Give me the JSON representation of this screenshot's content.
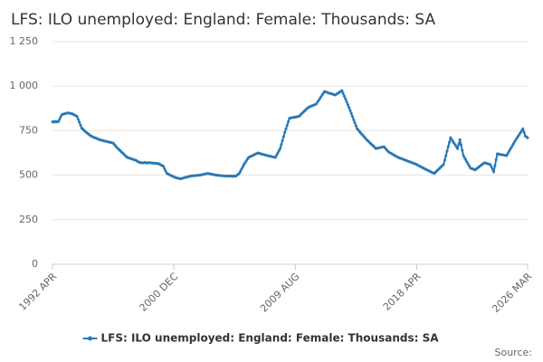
{
  "chart_data": {
    "type": "line",
    "title": "LFS: ILO unemployed: England: Female: Thousands: SA",
    "source": "Source:",
    "categories": [
      "1992 APR",
      null,
      null,
      null,
      null,
      null,
      null,
      null,
      null,
      null,
      null,
      null,
      null,
      null,
      null,
      null,
      null,
      null,
      null,
      null,
      null,
      null,
      null,
      null,
      null,
      null,
      null,
      null,
      null,
      null,
      null,
      null,
      null,
      null,
      null,
      null,
      null,
      null,
      null,
      null,
      null,
      null,
      null,
      null,
      null,
      null,
      null,
      null,
      null,
      null,
      null,
      null,
      null,
      null,
      null,
      null,
      null,
      null,
      null,
      null,
      null,
      null,
      null,
      null,
      null,
      null,
      null,
      null,
      null,
      null,
      null,
      null,
      null,
      null,
      null,
      null,
      null,
      null,
      null,
      null,
      null,
      null,
      null,
      null,
      null,
      null,
      null,
      null,
      null,
      null,
      null,
      null,
      null,
      null,
      null,
      null,
      null,
      null,
      null,
      null,
      null,
      null,
      null,
      null,
      "2000 DEC",
      null,
      null,
      null,
      null,
      null,
      null,
      null,
      null,
      null,
      null,
      null,
      null,
      null,
      null,
      null,
      null,
      null,
      null,
      null,
      null,
      null,
      null,
      null,
      null,
      null,
      null,
      null,
      null,
      null,
      null,
      null,
      null,
      null,
      null,
      null,
      null,
      null,
      null,
      null,
      null,
      null,
      null,
      null,
      null,
      null,
      null,
      null,
      null,
      null,
      null,
      null,
      null,
      null,
      null,
      null,
      null,
      null,
      null,
      null,
      null,
      null,
      null,
      null,
      null,
      null,
      null,
      null,
      null,
      null,
      null,
      null,
      null,
      null,
      null,
      null,
      null,
      null,
      null,
      null,
      null,
      null,
      null,
      null,
      null,
      null,
      null,
      null,
      null,
      null,
      null,
      null,
      null,
      null,
      null,
      null,
      null,
      null,
      null,
      null,
      null,
      null,
      null,
      null,
      "2009 AUG",
      null,
      null,
      null,
      null,
      null,
      null,
      null,
      null,
      null,
      null,
      null,
      null,
      null,
      null,
      null,
      null,
      null,
      null,
      null,
      null,
      null,
      null,
      null,
      null,
      null,
      null,
      null,
      null,
      null,
      null,
      null,
      null,
      null,
      null,
      null,
      null,
      null,
      null,
      null,
      null,
      null,
      null,
      null,
      null,
      null,
      null,
      null,
      null,
      null,
      null,
      null,
      null,
      null,
      null,
      null,
      null,
      null,
      null,
      null,
      null,
      null,
      null,
      null,
      null,
      null,
      null,
      null,
      null,
      null,
      null,
      null,
      null,
      null,
      null,
      null,
      null,
      null,
      null,
      null,
      null,
      null,
      null,
      null,
      null,
      null,
      null,
      null,
      null,
      null,
      null,
      null,
      null,
      null,
      null,
      null,
      null,
      null,
      null,
      null,
      null,
      null,
      null,
      null,
      "2018 APR",
      null,
      null,
      null,
      null,
      null,
      null,
      null,
      null,
      null,
      null,
      null,
      null,
      null,
      null,
      null,
      null,
      null,
      null,
      null,
      null,
      null,
      null,
      null,
      null,
      null,
      null,
      null,
      null,
      null,
      null,
      null,
      null,
      null,
      null,
      null,
      null,
      null,
      null,
      null,
      null,
      null,
      null,
      null,
      null,
      null,
      null,
      null,
      null,
      null,
      null,
      null,
      null,
      null,
      null,
      null,
      null,
      null,
      null,
      null,
      null,
      null,
      null,
      null,
      null,
      null,
      null,
      null,
      null,
      null,
      null,
      null,
      null,
      null,
      null,
      null,
      null,
      null,
      null,
      null,
      null,
      null,
      null,
      null,
      null,
      null,
      null,
      null,
      null,
      null,
      null,
      null,
      null,
      null,
      null,
      "2026 MAR"
    ],
    "series": [
      {
        "name": "LFS: ILO unemployed: England: Female: Thousands: SA",
        "color": "#2a78b4",
        "values": [
          800,
          798,
          802,
          799,
          801,
          800,
          813,
          827,
          840,
          842,
          844,
          846,
          848,
          850,
          849,
          847,
          846,
          845,
          841,
          837,
          834,
          830,
          814,
          798,
          781,
          765,
          759,
          752,
          746,
          740,
          735,
          730,
          725,
          720,
          717,
          714,
          711,
          709,
          706,
          703,
          700,
          698,
          697,
          695,
          693,
          692,
          690,
          688,
          687,
          685,
          684,
          682,
          680,
          672,
          665,
          657,
          650,
          644,
          638,
          631,
          625,
          619,
          612,
          606,
          600,
          598,
          596,
          593,
          591,
          589,
          587,
          585,
          581,
          577,
          574,
          570,
          571,
          569,
          570,
          572,
          570,
          568,
          571,
          570,
          569,
          570,
          567,
          568,
          566,
          567,
          564,
          565,
          561,
          557,
          554,
          550,
          536,
          523,
          510,
          507,
          504,
          500,
          497,
          494,
          491,
          488,
          485,
          484,
          483,
          481,
          480,
          482,
          484,
          486,
          488,
          489,
          491,
          493,
          495,
          496,
          497,
          497,
          498,
          498,
          499,
          500,
          500,
          501,
          503,
          504,
          506,
          507,
          509,
          510,
          509,
          507,
          506,
          505,
          503,
          502,
          501,
          500,
          499,
          498,
          498,
          497,
          497,
          496,
          496,
          495,
          495,
          497,
          494,
          496,
          493,
          496,
          494,
          495,
          500,
          505,
          510,
          522,
          535,
          547,
          560,
          570,
          580,
          590,
          600,
          603,
          606,
          609,
          612,
          616,
          619,
          622,
          625,
          623,
          621,
          619,
          617,
          616,
          614,
          612,
          610,
          609,
          607,
          606,
          604,
          603,
          601,
          600,
          612,
          625,
          637,
          650,
          672,
          695,
          717,
          740,
          760,
          780,
          800,
          820,
          821,
          823,
          824,
          825,
          826,
          828,
          829,
          830,
          836,
          843,
          849,
          855,
          861,
          868,
          874,
          880,
          883,
          886,
          889,
          891,
          894,
          897,
          900,
          910,
          920,
          930,
          940,
          950,
          960,
          970,
          968,
          966,
          963,
          961,
          959,
          957,
          955,
          952,
          950,
          954,
          958,
          962,
          967,
          971,
          975,
          959,
          943,
          928,
          912,
          896,
          880,
          863,
          846,
          829,
          811,
          794,
          777,
          760,
          753,
          745,
          738,
          730,
          723,
          715,
          708,
          700,
          694,
          688,
          681,
          675,
          669,
          663,
          656,
          650,
          651,
          653,
          654,
          656,
          657,
          659,
          660,
          652,
          645,
          637,
          630,
          626,
          623,
          619,
          615,
          611,
          608,
          604,
          600,
          598,
          595,
          593,
          590,
          588,
          585,
          583,
          580,
          578,
          575,
          573,
          570,
          568,
          565,
          563,
          560,
          556,
          553,
          549,
          546,
          542,
          539,
          535,
          532,
          529,
          526,
          523,
          519,
          516,
          513,
          510,
          516,
          523,
          529,
          535,
          541,
          548,
          554,
          560,
          585,
          610,
          635,
          660,
          685,
          710,
          700,
          690,
          680,
          670,
          660,
          650,
          675,
          700,
          670,
          640,
          610,
          598,
          587,
          575,
          563,
          552,
          540,
          538,
          535,
          533,
          530,
          535,
          540,
          545,
          550,
          555,
          560,
          565,
          570,
          568,
          566,
          564,
          562,
          560,
          547,
          533,
          520,
          553,
          587,
          620,
          619,
          617,
          616,
          615,
          614,
          612,
          611,
          610,
          621,
          633,
          644,
          655,
          666,
          678,
          689,
          700,
          710,
          720,
          730,
          740,
          750,
          760,
          740,
          720,
          715,
          710
        ]
      }
    ],
    "ylim": [
      0,
      1250
    ],
    "yticks": [
      0,
      250,
      500,
      750,
      {
        "value": 1000,
        "label": "1 000"
      },
      {
        "value": 1250,
        "label": "1 250"
      }
    ],
    "grid": true
  }
}
